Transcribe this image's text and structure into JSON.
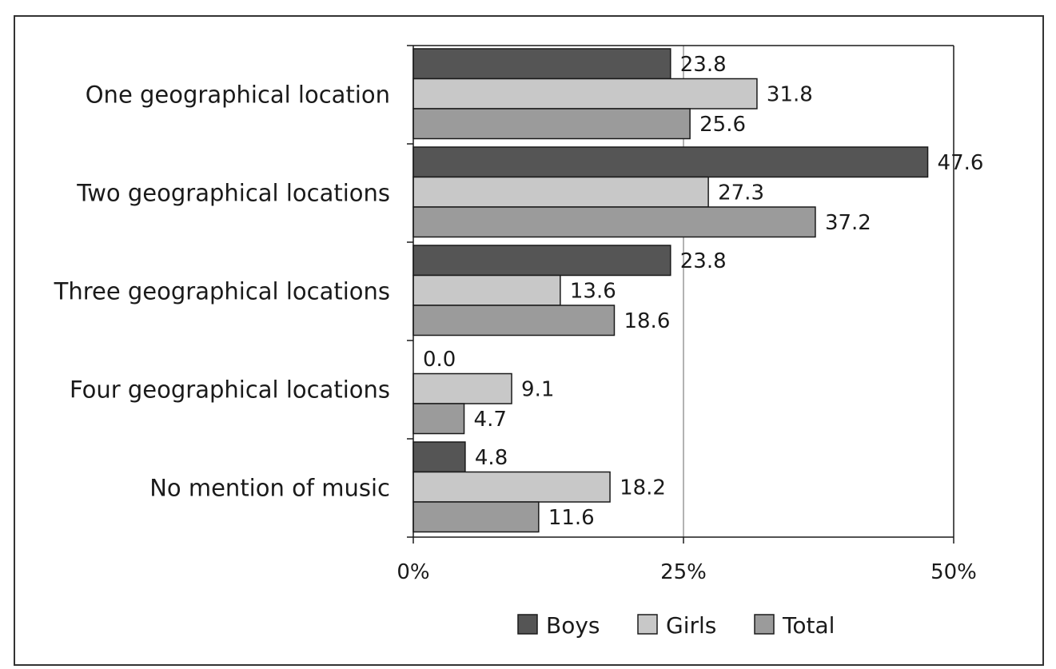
{
  "chart_data": {
    "type": "bar",
    "orientation": "horizontal",
    "categories": [
      "One geographical location",
      "Two geographical locations",
      "Three geographical locations",
      "Four geographical locations",
      "No mention of music"
    ],
    "series": [
      {
        "name": "Boys",
        "color": "#555555",
        "values": [
          23.8,
          47.6,
          23.8,
          0.0,
          4.8
        ]
      },
      {
        "name": "Girls",
        "color": "#c8c8c8",
        "values": [
          31.8,
          27.3,
          13.6,
          9.1,
          18.2
        ]
      },
      {
        "name": "Total",
        "color": "#9b9b9b",
        "values": [
          25.6,
          37.2,
          18.6,
          4.7,
          11.6
        ]
      }
    ],
    "value_labels": [
      [
        "23.8",
        "47.6",
        "23.8",
        "0.0",
        "4.8"
      ],
      [
        "31.8",
        "27.3",
        "13.6",
        "9.1",
        "18.2"
      ],
      [
        "25.6",
        "37.2",
        "18.6",
        "4.7",
        "11.6"
      ]
    ],
    "xlim": [
      0,
      50
    ],
    "xticks": [
      0,
      25,
      50
    ],
    "xtick_labels": [
      "0%",
      "25%",
      "50%"
    ],
    "grid": true,
    "legend_position": "bottom"
  }
}
